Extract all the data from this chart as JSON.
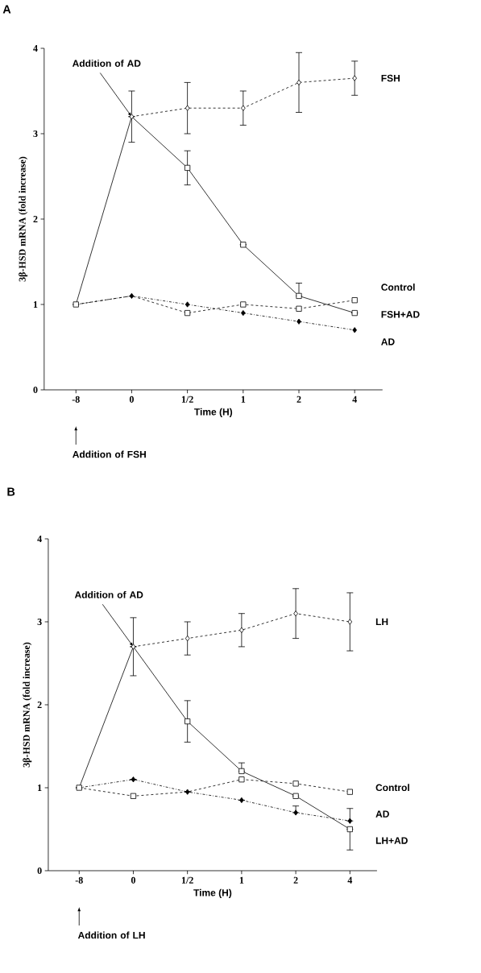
{
  "chart_data": [
    {
      "type": "line",
      "title": "A",
      "xlabel": "Time (H)",
      "ylabel": "3β-HSD mRNA (fold increase)",
      "categories": [
        "-8",
        "0",
        "1/2",
        "1",
        "2",
        "4"
      ],
      "ylim": [
        0,
        4
      ],
      "yticks": [
        0,
        1,
        2,
        3,
        4
      ],
      "series": [
        {
          "name": "FSH",
          "color": "#000000",
          "marker": "diamond",
          "line_style": "dashed",
          "values": [
            null,
            3.2,
            3.3,
            3.3,
            3.6,
            3.65
          ],
          "errors": [
            null,
            null,
            [
              3.0,
              3.6
            ],
            [
              3.1,
              3.5
            ],
            [
              3.25,
              3.95
            ],
            [
              3.45,
              3.85
            ]
          ]
        },
        {
          "name": "Control",
          "color": "#000000",
          "marker": "square",
          "line_style": "dashed",
          "values": [
            1,
            1.1,
            0.9,
            1.0,
            0.95,
            1.05
          ]
        },
        {
          "name": "FSH+AD",
          "color": "#000000",
          "marker": "square",
          "line_style": "solid",
          "values": [
            1,
            3.2,
            2.6,
            1.7,
            1.1,
            0.9
          ],
          "errors": [
            null,
            [
              2.9,
              3.5
            ],
            [
              2.4,
              2.8
            ],
            null,
            [
              1.1,
              1.25
            ],
            null
          ]
        },
        {
          "name": "AD",
          "color": "#000000",
          "marker": "diamond",
          "line_style": "dotted",
          "values": [
            1,
            1.1,
            1.0,
            0.9,
            0.8,
            0.7
          ]
        }
      ],
      "annotations": [
        {
          "text": "Addition of AD",
          "x": "0",
          "y": 3.2
        },
        "Addition of FSH"
      ]
    },
    {
      "type": "line",
      "title": "B",
      "xlabel": "Time (H)",
      "ylabel": "3β-HSD mRNA (fold increase)",
      "categories": [
        "-8",
        "0",
        "1/2",
        "1",
        "2",
        "4"
      ],
      "ylim": [
        0,
        4
      ],
      "yticks": [
        0,
        1,
        2,
        3,
        4
      ],
      "series": [
        {
          "name": "LH",
          "color": "#000000",
          "marker": "diamond",
          "line_style": "dashed",
          "values": [
            null,
            2.7,
            2.8,
            2.9,
            3.1,
            3.0
          ],
          "errors": [
            null,
            null,
            [
              2.6,
              3.0
            ],
            [
              2.7,
              3.1
            ],
            [
              2.8,
              3.4
            ],
            [
              2.65,
              3.35
            ]
          ]
        },
        {
          "name": "Control",
          "color": "#000000",
          "marker": "square",
          "line_style": "dashed",
          "values": [
            1,
            0.9,
            0.95,
            1.1,
            1.05,
            0.95
          ]
        },
        {
          "name": "AD",
          "color": "#000000",
          "marker": "diamond",
          "line_style": "dotted",
          "values": [
            1,
            1.1,
            0.95,
            0.85,
            0.7,
            0.6
          ],
          "errors": [
            null,
            null,
            null,
            null,
            [
              0.7,
              0.78
            ],
            [
              0.6,
              0.75
            ]
          ]
        },
        {
          "name": "LH+AD",
          "color": "#000000",
          "marker": "square",
          "line_style": "solid",
          "values": [
            1,
            2.7,
            1.8,
            1.2,
            0.9,
            0.5
          ],
          "errors": [
            null,
            [
              2.35,
              3.05
            ],
            [
              1.55,
              2.05
            ],
            [
              1.2,
              1.3
            ],
            null,
            [
              0.25,
              0.5
            ]
          ]
        }
      ],
      "annotations": [
        {
          "text": "Addition of AD",
          "x": "0",
          "y": 2.7
        },
        "Addition of LH"
      ]
    }
  ]
}
